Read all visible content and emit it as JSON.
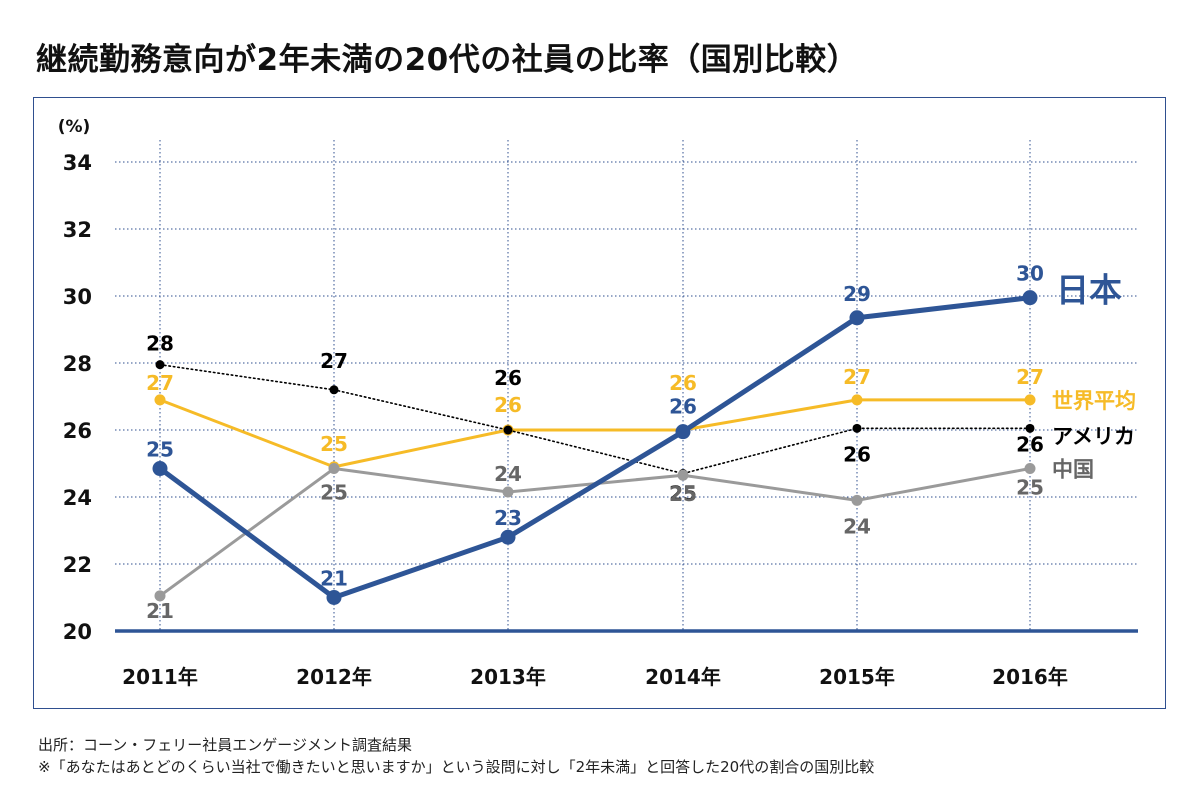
{
  "title": "継続勤務意向が2年未満の20代の社員の比率（国別比較）",
  "footer": {
    "source": "出所：コーン・フェリー社員エンゲージメント調査結果",
    "note": "※「あなたはあとどのくらい当社で働きたいと思いますか」という設問に対し「2年未満」と回答した20代の割合の国別比較"
  },
  "chart_data": {
    "type": "line",
    "y_unit_label": "(%)",
    "categories": [
      "2011年",
      "2012年",
      "2013年",
      "2014年",
      "2015年",
      "2016年"
    ],
    "ylim": [
      20,
      34
    ],
    "yticks": [
      20,
      22,
      24,
      26,
      28,
      30,
      32,
      34
    ],
    "grid": true,
    "series": [
      {
        "name": "世界平均",
        "color": "#f6bb27",
        "style": "solid",
        "values": [
          26.9,
          24.9,
          26.0,
          26.0,
          26.9,
          26.9
        ],
        "labels": [
          "27",
          "25",
          "26",
          "26",
          "27",
          "27"
        ]
      },
      {
        "name": "アメリカ",
        "color": "#000000",
        "style": "dotted",
        "values": [
          27.95,
          27.2,
          26.0,
          24.7,
          26.05,
          26.05
        ],
        "labels": [
          "28",
          "27",
          "26",
          "25",
          "26",
          "26"
        ]
      },
      {
        "name": "中国",
        "color": "#9a9a9a",
        "label_color": "#666666",
        "style": "solid",
        "values": [
          21.05,
          24.85,
          24.15,
          24.65,
          23.9,
          24.85
        ],
        "labels": [
          "21",
          "25",
          "24",
          "25",
          "24",
          "25"
        ]
      },
      {
        "name": "日本",
        "color": "#2e5596",
        "style": "solid-bold",
        "values": [
          24.85,
          21.0,
          22.8,
          25.95,
          29.35,
          29.95
        ],
        "labels": [
          "25",
          "21",
          "23",
          "26",
          "29",
          "30"
        ]
      }
    ]
  }
}
